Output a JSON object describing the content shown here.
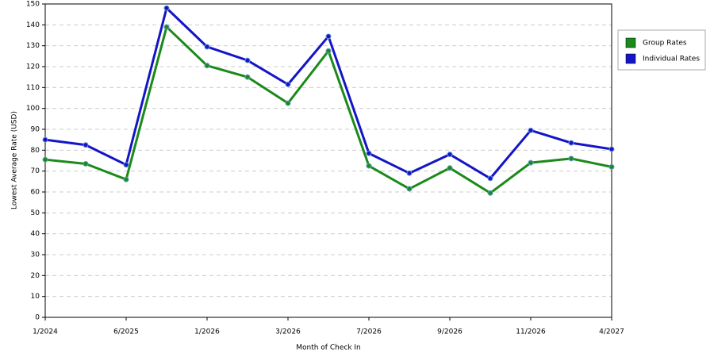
{
  "chart_data": {
    "type": "line",
    "y_label": "Lowest Average Rate (USD)",
    "x_label": "Month of Check In",
    "categories": [
      "1/2024",
      null,
      "6/2025",
      null,
      "1/2026",
      null,
      "3/2026",
      null,
      "7/2026",
      null,
      "9/2026",
      null,
      "11/2026",
      null,
      "4/2027"
    ],
    "series": [
      {
        "name": "Group Rates",
        "color": "#1a8a1a",
        "values": [
          75.5,
          73.5,
          66,
          139,
          120.5,
          115,
          102.5,
          127.5,
          72.5,
          61.5,
          71.5,
          59.5,
          74,
          76,
          72
        ]
      },
      {
        "name": "Individual Rates",
        "color": "#1414c8",
        "values": [
          85,
          82.5,
          73,
          148,
          129.5,
          123,
          111.5,
          134.5,
          78.5,
          69,
          78,
          66.5,
          89.5,
          83.5,
          80.5
        ]
      }
    ],
    "ylim": [
      0,
      150
    ],
    "yticks": [
      0,
      10,
      20,
      30,
      40,
      50,
      60,
      70,
      80,
      90,
      100,
      110,
      120,
      130,
      140,
      150
    ],
    "grid": true,
    "legend": "right"
  }
}
